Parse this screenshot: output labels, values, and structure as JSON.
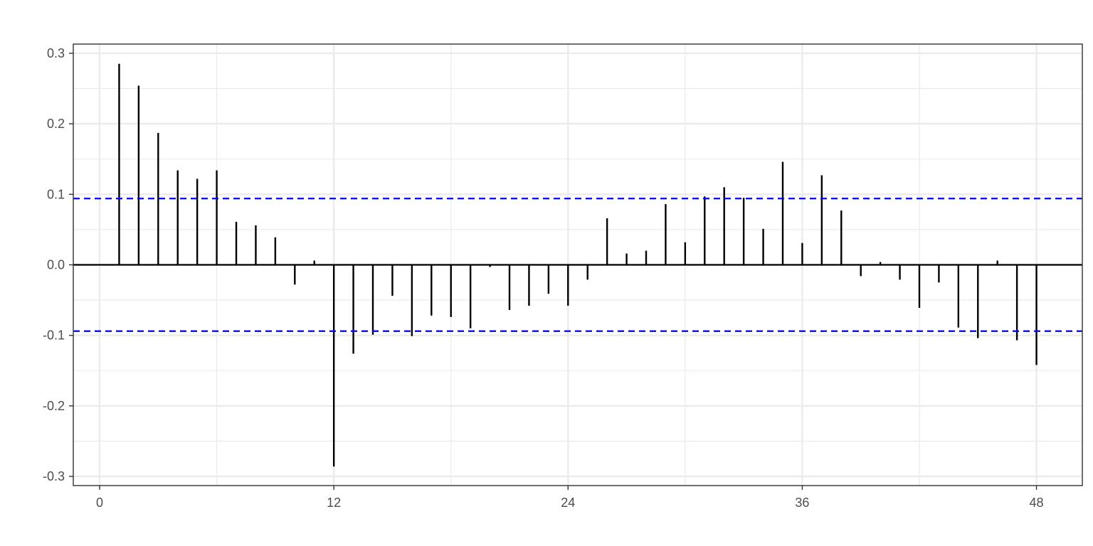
{
  "chart_data": {
    "type": "bar",
    "subtype": "acf-correlogram",
    "title": "",
    "xlabel": "",
    "ylabel": "",
    "xlim": [
      -1.35,
      50.35
    ],
    "ylim": [
      -0.313,
      0.313
    ],
    "x_ticks": [
      0,
      12,
      24,
      36,
      48
    ],
    "x_tick_labels": [
      "0",
      "12",
      "24",
      "36",
      "48"
    ],
    "y_ticks": [
      -0.3,
      -0.2,
      -0.1,
      0.0,
      0.1,
      0.2,
      0.3
    ],
    "y_tick_labels": [
      "-0.3",
      "-0.2",
      "-0.1",
      "0.0",
      "0.1",
      "0.2",
      "0.3"
    ],
    "grid": true,
    "confidence_bounds": [
      0.094,
      -0.094
    ],
    "colors": {
      "bars": "#000000",
      "bounds": "#0000ff",
      "grid": "#ebebeb",
      "panel_border": "#333333",
      "tick_label": "#4d4d4d"
    },
    "lags": [
      1,
      2,
      3,
      4,
      5,
      6,
      7,
      8,
      9,
      10,
      11,
      12,
      13,
      14,
      15,
      16,
      17,
      18,
      19,
      20,
      21,
      22,
      23,
      24,
      25,
      26,
      27,
      28,
      29,
      30,
      31,
      32,
      33,
      34,
      35,
      36,
      37,
      38,
      39,
      40,
      41,
      42,
      43,
      44,
      45,
      46,
      47,
      48
    ],
    "values": [
      0.285,
      0.254,
      0.187,
      0.134,
      0.122,
      0.134,
      0.061,
      0.056,
      0.039,
      -0.028,
      0.006,
      -0.286,
      -0.126,
      -0.099,
      -0.044,
      -0.101,
      -0.072,
      -0.074,
      -0.09,
      -0.003,
      -0.064,
      -0.058,
      -0.041,
      -0.058,
      -0.021,
      0.066,
      0.016,
      0.02,
      0.086,
      0.032,
      0.097,
      0.11,
      0.095,
      0.051,
      0.146,
      0.031,
      0.127,
      0.077,
      -0.016,
      0.004,
      -0.021,
      -0.061,
      -0.025,
      -0.089,
      -0.104,
      0.006,
      -0.107,
      -0.142
    ]
  }
}
